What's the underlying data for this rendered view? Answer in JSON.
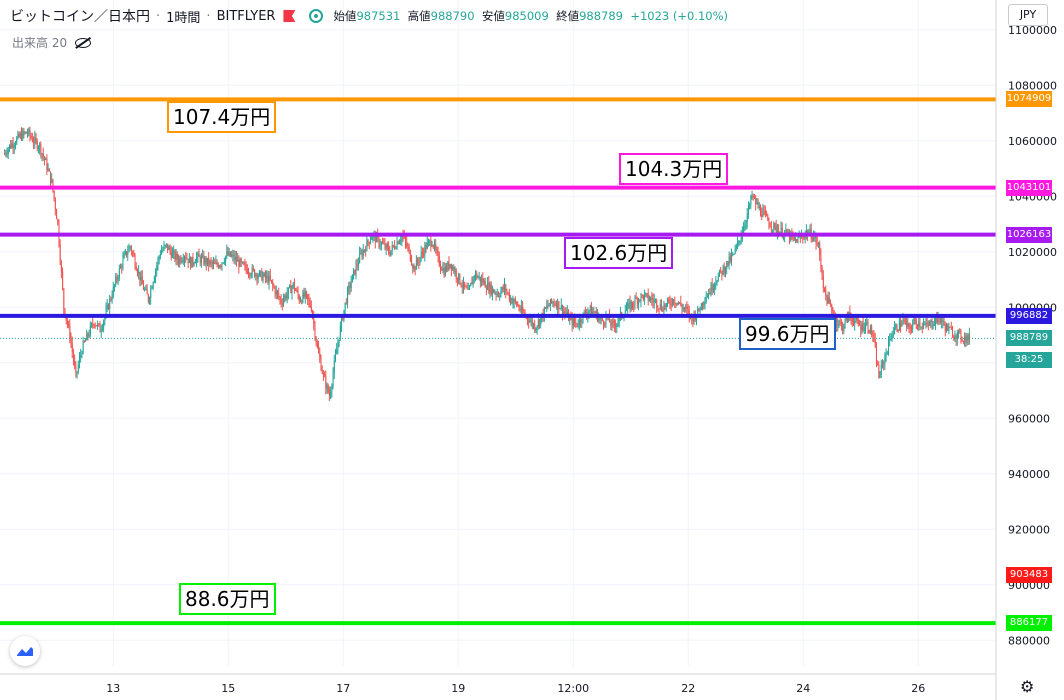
{
  "header": {
    "symbol": "ビットコイン／日本円",
    "interval": "1時間",
    "exchange": "BITFLYER",
    "open_label": "始値",
    "open_value": "987531",
    "high_label": "高値",
    "high_value": "988790",
    "low_label": "安値",
    "low_value": "985009",
    "close_label": "終値",
    "close_value": "988789",
    "change": "+1023 (+0.10%)"
  },
  "volume": {
    "label": "出来高",
    "value": "20"
  },
  "currency": "JPY",
  "countdown": "38:25",
  "colors": {
    "up": "#26a69a",
    "down": "#ef5350",
    "orange": "#ff9800",
    "magenta": "#ff19e0",
    "purple": "#a81bf0",
    "blue": "#2c19e0",
    "green": "#00f000",
    "red": "#ff1a1a",
    "annot_blue": "#1e60c8"
  },
  "chart_data": {
    "type": "candlestick",
    "ylim": [
      870000,
      1110000
    ],
    "y_ticks": [
      880000,
      900000,
      920000,
      940000,
      960000,
      980000,
      1000000,
      1020000,
      1040000,
      1060000,
      1080000,
      1100000
    ],
    "x_ticks": [
      "13",
      "15",
      "17",
      "19",
      "12:00",
      "22",
      "24",
      "26"
    ],
    "x_tick_positions": [
      23,
      43,
      63,
      83,
      103,
      123,
      143,
      163
    ],
    "x_range": [
      4,
      172
    ],
    "current_price": 988789,
    "horizontal_lines": [
      {
        "price": 1074909,
        "color": "#ff9800",
        "annotation": "107.4万円",
        "label": "1074909"
      },
      {
        "price": 1043101,
        "color": "#ff19e0",
        "annotation": "104.3万円",
        "label": "1043101"
      },
      {
        "price": 1026163,
        "color": "#a81bf0",
        "annotation": "102.6万円",
        "label": "1026163"
      },
      {
        "price": 996882,
        "color": "#2c19e0",
        "annotation": "99.6万円",
        "label": "996882"
      },
      {
        "price": 886177,
        "color": "#00f000",
        "annotation": "88.6万円",
        "label": "886177"
      }
    ],
    "price_markers": [
      {
        "price": 988789,
        "label": "988789",
        "color": "#26a69a"
      },
      {
        "price": 903483,
        "label": "903483",
        "color": "#ff1a1a"
      }
    ],
    "closes": [
      1055000,
      1058000,
      1060000,
      1062000,
      1063000,
      1060000,
      1058000,
      1052000,
      1045000,
      1030000,
      1000000,
      990000,
      975000,
      985000,
      990000,
      995000,
      992000,
      998000,
      1005000,
      1012000,
      1018000,
      1022000,
      1015000,
      1008000,
      1003000,
      1012000,
      1020000,
      1022000,
      1019000,
      1017000,
      1019000,
      1016000,
      1018000,
      1017000,
      1016000,
      1015000,
      1016000,
      1019000,
      1018000,
      1016000,
      1014000,
      1013000,
      1012000,
      1011000,
      1010000,
      1006000,
      1002000,
      1005000,
      1008000,
      1003000,
      1004000,
      1000000,
      985000,
      975000,
      968000,
      982000,
      995000,
      1005000,
      1012000,
      1018000,
      1022000,
      1026000,
      1024000,
      1022000,
      1020000,
      1023000,
      1026000,
      1021000,
      1014000,
      1018000,
      1022000,
      1024000,
      1017000,
      1013000,
      1016000,
      1012000,
      1008000,
      1005000,
      1012000,
      1010000,
      1008000,
      1006000,
      1005000,
      1007000,
      1003000,
      1001000,
      998000,
      996000,
      993000,
      996000,
      1000000,
      1002000,
      1001000,
      998000,
      995000,
      994000,
      997000,
      999000,
      998000,
      995000,
      996000,
      993000,
      996000,
      999000,
      1001000,
      1003000,
      1004000,
      1003000,
      1002000,
      1000000,
      1001000,
      1003000,
      1001000,
      999000,
      996000,
      998000,
      1003000,
      1006000,
      1010000,
      1013000,
      1016000,
      1019000,
      1025000,
      1032000,
      1040000,
      1036000,
      1033000,
      1030000,
      1028000,
      1027000,
      1026000,
      1024000,
      1025000,
      1027000,
      1026000,
      1022000,
      1005000,
      1000000,
      995000,
      993000,
      997000,
      995000,
      993000,
      994000,
      990000,
      975000,
      982000,
      990000,
      993000,
      995000,
      992000,
      995000,
      994000,
      993000,
      995000,
      996000,
      993000,
      991000,
      990000,
      989000,
      988789
    ]
  }
}
